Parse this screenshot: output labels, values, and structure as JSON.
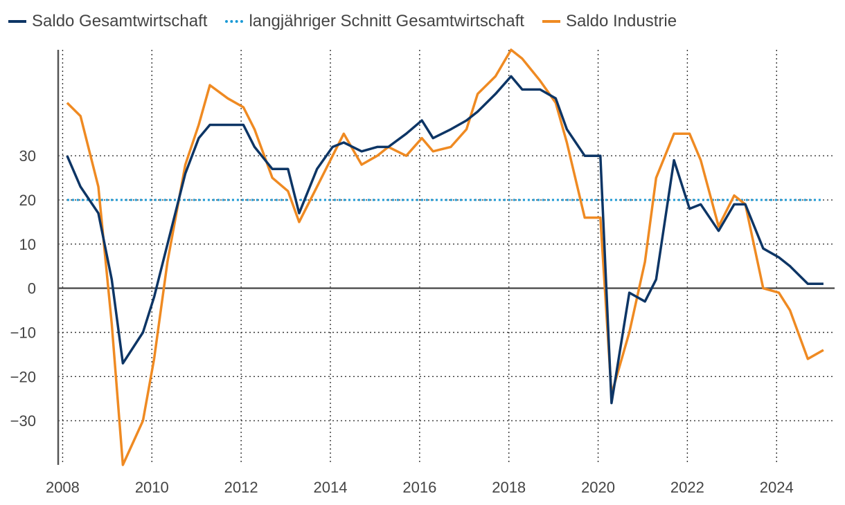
{
  "chart_data": {
    "type": "line",
    "title": "",
    "xlabel": "",
    "ylabel": "",
    "xlim": [
      2007.9,
      2025.3
    ],
    "ylim": [
      -40,
      54
    ],
    "x_ticks": [
      2008,
      2010,
      2012,
      2014,
      2016,
      2018,
      2020,
      2022,
      2024
    ],
    "x_tick_labels": [
      "2008",
      "2010",
      "2012",
      "2014",
      "2016",
      "2018",
      "2020",
      "2022",
      "2024"
    ],
    "y_ticks": [
      -30,
      -20,
      -10,
      0,
      10,
      20,
      30
    ],
    "y_tick_labels": [
      "-30",
      "-20",
      "-10",
      "0",
      "10",
      "20",
      "30"
    ],
    "grid": true,
    "legend_position": "top-left",
    "series": [
      {
        "name": "Saldo Gesamtwirtschaft",
        "color": "#0d3565",
        "style": "solid",
        "points": [
          [
            2008.1,
            30
          ],
          [
            2008.4,
            23
          ],
          [
            2008.8,
            17
          ],
          [
            2009.1,
            2
          ],
          [
            2009.35,
            -17
          ],
          [
            2009.8,
            -10
          ],
          [
            2010.05,
            -2
          ],
          [
            2010.35,
            10
          ],
          [
            2010.75,
            26
          ],
          [
            2011.05,
            34
          ],
          [
            2011.3,
            37
          ],
          [
            2011.7,
            37
          ],
          [
            2012.05,
            37
          ],
          [
            2012.3,
            32
          ],
          [
            2012.7,
            27
          ],
          [
            2013.05,
            27
          ],
          [
            2013.3,
            17
          ],
          [
            2013.7,
            27
          ],
          [
            2014.05,
            32
          ],
          [
            2014.3,
            33
          ],
          [
            2014.7,
            31
          ],
          [
            2015.05,
            32
          ],
          [
            2015.3,
            32
          ],
          [
            2015.7,
            35
          ],
          [
            2016.05,
            38
          ],
          [
            2016.3,
            34
          ],
          [
            2016.7,
            36
          ],
          [
            2017.05,
            38
          ],
          [
            2017.3,
            40
          ],
          [
            2017.7,
            44
          ],
          [
            2018.05,
            48
          ],
          [
            2018.3,
            45
          ],
          [
            2018.7,
            45
          ],
          [
            2019.05,
            43
          ],
          [
            2019.3,
            36
          ],
          [
            2019.7,
            30
          ],
          [
            2020.05,
            30
          ],
          [
            2020.3,
            -26
          ],
          [
            2020.7,
            -1
          ],
          [
            2021.05,
            -3
          ],
          [
            2021.3,
            2
          ],
          [
            2021.7,
            29
          ],
          [
            2022.05,
            18
          ],
          [
            2022.3,
            19
          ],
          [
            2022.7,
            13
          ],
          [
            2023.05,
            19
          ],
          [
            2023.3,
            19
          ],
          [
            2023.7,
            9
          ],
          [
            2024.05,
            7
          ],
          [
            2024.3,
            5
          ],
          [
            2024.7,
            1
          ],
          [
            2025.05,
            1
          ]
        ]
      },
      {
        "name": "langjähriger Schnitt Gesamtwirtschaft",
        "color": "#1b9ad6",
        "style": "dotted",
        "points": [
          [
            2008.1,
            20
          ],
          [
            2025.05,
            20
          ]
        ]
      },
      {
        "name": "Saldo Industrie",
        "color": "#ef8a22",
        "style": "solid",
        "points": [
          [
            2008.1,
            42
          ],
          [
            2008.4,
            39
          ],
          [
            2008.8,
            23
          ],
          [
            2009.1,
            -8
          ],
          [
            2009.35,
            -40
          ],
          [
            2009.8,
            -30
          ],
          [
            2010.05,
            -16
          ],
          [
            2010.35,
            6
          ],
          [
            2010.75,
            28
          ],
          [
            2011.05,
            37
          ],
          [
            2011.3,
            46
          ],
          [
            2011.7,
            43
          ],
          [
            2012.05,
            41
          ],
          [
            2012.3,
            36
          ],
          [
            2012.7,
            25
          ],
          [
            2013.05,
            22
          ],
          [
            2013.3,
            15
          ],
          [
            2013.7,
            23
          ],
          [
            2014.05,
            30
          ],
          [
            2014.3,
            35
          ],
          [
            2014.7,
            28
          ],
          [
            2015.05,
            30
          ],
          [
            2015.3,
            32
          ],
          [
            2015.7,
            30
          ],
          [
            2016.05,
            34
          ],
          [
            2016.3,
            31
          ],
          [
            2016.7,
            32
          ],
          [
            2017.05,
            36
          ],
          [
            2017.3,
            44
          ],
          [
            2017.7,
            48
          ],
          [
            2018.05,
            54
          ],
          [
            2018.3,
            52
          ],
          [
            2018.7,
            47
          ],
          [
            2019.05,
            42
          ],
          [
            2019.3,
            33
          ],
          [
            2019.7,
            16
          ],
          [
            2020.05,
            16
          ],
          [
            2020.3,
            -24
          ],
          [
            2020.7,
            -10
          ],
          [
            2021.05,
            6
          ],
          [
            2021.3,
            25
          ],
          [
            2021.7,
            35
          ],
          [
            2022.05,
            35
          ],
          [
            2022.3,
            29
          ],
          [
            2022.7,
            14
          ],
          [
            2023.05,
            21
          ],
          [
            2023.3,
            19
          ],
          [
            2023.7,
            0
          ],
          [
            2024.05,
            -1
          ],
          [
            2024.3,
            -5
          ],
          [
            2024.7,
            -16
          ],
          [
            2025.05,
            -14
          ]
        ]
      }
    ]
  }
}
